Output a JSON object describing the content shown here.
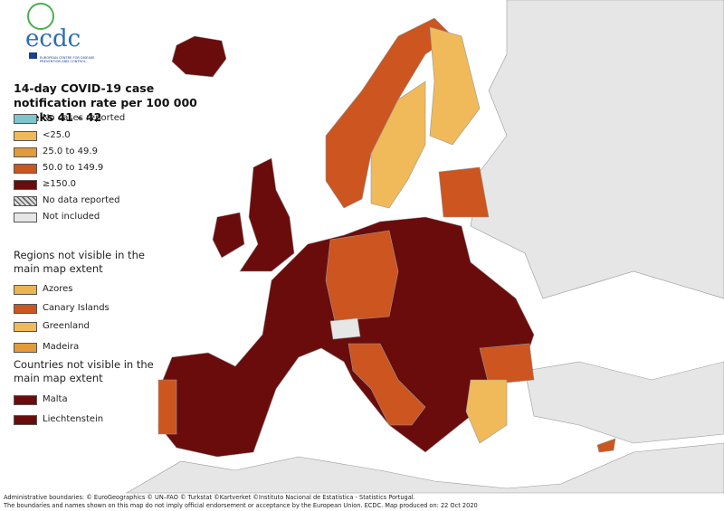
{
  "logo": {
    "name": "ecdc",
    "caption": "EUROPEAN CENTRE FOR DISEASE PREVENTION AND CONTROL"
  },
  "title": "14-day COVID-19 case notification rate per 100 000 weeks 41 - 42",
  "legend": {
    "items": [
      {
        "label": "No cases reported",
        "color": "#7fc5cc"
      },
      {
        "label": "<25.0",
        "color": "#f0b95a"
      },
      {
        "label": "25.0 to 49.9",
        "color": "#e39a3b"
      },
      {
        "label": "50.0 to 149.9",
        "color": "#cc5520"
      },
      {
        "label": "≥150.0",
        "color": "#6b0c0c"
      },
      {
        "label": "No data reported",
        "color": "#bbbbbb",
        "pattern": "hatched"
      },
      {
        "label": "Not included",
        "color": "#e6e6e6"
      }
    ]
  },
  "regions": {
    "title": "Regions not visible in the main map extent",
    "items": [
      {
        "label": "Azores",
        "color": "#eab54f"
      },
      {
        "label": "Canary Islands",
        "color": "#cc5520"
      },
      {
        "label": "Greenland",
        "color": "#f0b95a"
      },
      {
        "label": "Madeira",
        "color": "#e39a3b"
      }
    ]
  },
  "countries": {
    "title": "Countries not visible in the main map extent",
    "items": [
      {
        "label": "Malta",
        "color": "#6b0c0c"
      },
      {
        "label": "Liechtenstein",
        "color": "#6b0c0c"
      }
    ]
  },
  "footer": [
    "Administrative boundaries: © EuroGeographics © UN–FAO © Turkstat ©Kartverket ©Instituto Nacional de Estatística - Statistics Portugal.",
    "The boundaries and names shown on this map do not imply official endorsement or acceptance by the European Union. ECDC. Map produced on: 22 Oct 2020"
  ]
}
